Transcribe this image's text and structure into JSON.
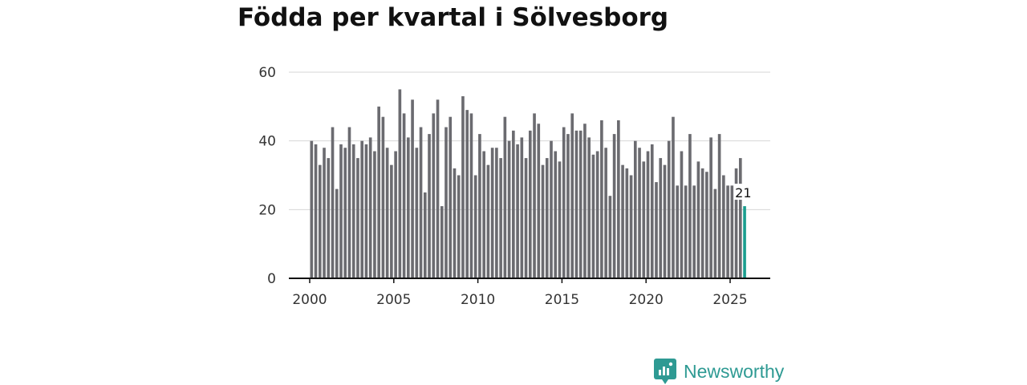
{
  "chart_data": {
    "type": "bar",
    "title": "Födda per kvartal i Sölvesborg",
    "xlabel": "",
    "ylabel": "",
    "ylim": [
      0,
      60
    ],
    "yticks": [
      0,
      20,
      40,
      60
    ],
    "xticks": [
      2000,
      2005,
      2010,
      2015,
      2020,
      2025
    ],
    "start_year": 2000,
    "highlight_color": "#1a9e8f",
    "bar_color": "#6b6b70",
    "values": [
      40,
      39,
      33,
      38,
      35,
      44,
      26,
      39,
      38,
      44,
      39,
      35,
      40,
      39,
      41,
      37,
      50,
      47,
      38,
      33,
      37,
      55,
      48,
      41,
      52,
      38,
      44,
      25,
      42,
      48,
      52,
      21,
      44,
      47,
      32,
      30,
      53,
      49,
      48,
      30,
      42,
      37,
      33,
      38,
      38,
      35,
      47,
      40,
      43,
      39,
      41,
      35,
      43,
      48,
      45,
      33,
      35,
      40,
      37,
      34,
      44,
      42,
      48,
      43,
      43,
      45,
      41,
      36,
      37,
      46,
      38,
      24,
      42,
      46,
      33,
      32,
      30,
      40,
      38,
      34,
      37,
      39,
      28,
      35,
      33,
      40,
      47,
      27,
      37,
      27,
      42,
      27,
      34,
      32,
      31,
      41,
      26,
      42,
      30,
      27,
      27,
      32,
      35,
      21
    ],
    "last_value_label": "21"
  },
  "brand": {
    "name": "Newsworthy",
    "color": "#2e9a93"
  }
}
